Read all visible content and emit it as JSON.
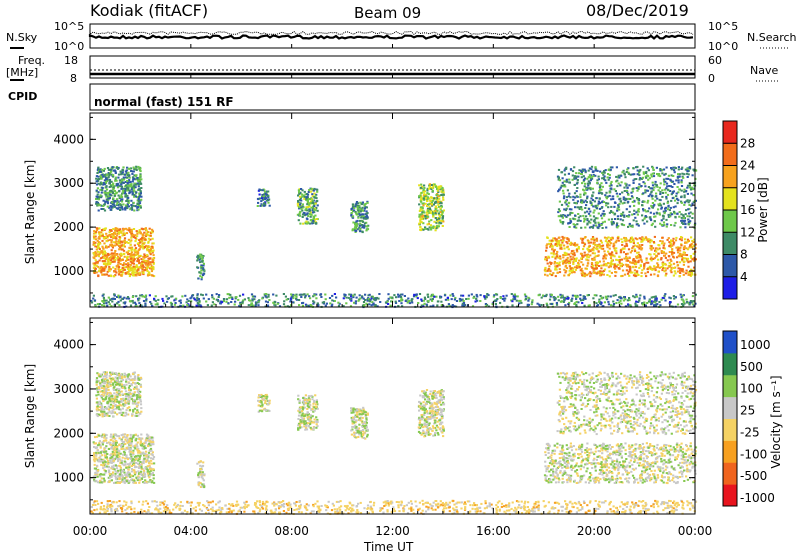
{
  "header": {
    "station": "Kodiak (fitACF)",
    "beam": "Beam 09",
    "date": "08/Dec/2019"
  },
  "noise_panel": {
    "left_label": "N.Sky",
    "right_label": "N.Search",
    "tick_top": "10^5",
    "tick_bottom": "10^0"
  },
  "freq_panel": {
    "left_label_1": "Freq.",
    "left_label_2": "[MHz]",
    "left_tick_top": "18",
    "left_tick_bottom": "8",
    "right_label": "Nave",
    "right_tick_top": "60",
    "right_tick_bottom": "0"
  },
  "cpid_panel": {
    "label": "CPID",
    "mode": "normal (fast) 151 RF"
  },
  "colors": {
    "power_scale": [
      "#1e1ee6",
      "#2d58a8",
      "#3e8a66",
      "#6ec84a",
      "#e4e21e",
      "#f7a21e",
      "#f26d1b",
      "#e8281e"
    ],
    "velocity_scale": [
      "#e8141e",
      "#f0641e",
      "#f7a020",
      "#f5d264",
      "#c8c8c8",
      "#86c850",
      "#2e8a50",
      "#2050c8"
    ]
  },
  "chart_data": [
    {
      "type": "heatmap",
      "title": "Power",
      "ylabel": "Slant Range [km]",
      "xlabel": "Time UT",
      "x_ticks": [
        "00:00",
        "04:00",
        "08:00",
        "12:00",
        "16:00",
        "20:00",
        "00:00"
      ],
      "y_ticks": [
        "1000",
        "2000",
        "3000",
        "4000"
      ],
      "ylim": [
        180,
        4600
      ],
      "xlim_hours": [
        0,
        24
      ],
      "colorbar": {
        "label": "Power [dB]",
        "ticks": [
          "4",
          "8",
          "12",
          "16",
          "20",
          "24",
          "28"
        ],
        "range": [
          0,
          32
        ]
      },
      "echo_regions": [
        {
          "t0": 0.1,
          "t1": 2.5,
          "r0": 900,
          "r1": 2000,
          "level": 22
        },
        {
          "t0": 0.2,
          "t1": 2.0,
          "r0": 2400,
          "r1": 3400,
          "level": 10
        },
        {
          "t0": 4.2,
          "t1": 4.5,
          "r0": 800,
          "r1": 1400,
          "level": 10
        },
        {
          "t0": 6.6,
          "t1": 7.1,
          "r0": 2500,
          "r1": 2900,
          "level": 8
        },
        {
          "t0": 8.2,
          "t1": 9.0,
          "r0": 2100,
          "r1": 2900,
          "level": 12
        },
        {
          "t0": 10.3,
          "t1": 11.0,
          "r0": 1900,
          "r1": 2600,
          "level": 10
        },
        {
          "t0": 13.0,
          "t1": 14.0,
          "r0": 1950,
          "r1": 3000,
          "level": 15
        },
        {
          "t0": 18.0,
          "t1": 24.0,
          "r0": 900,
          "r1": 1800,
          "level": 22
        },
        {
          "t0": 18.5,
          "t1": 24.0,
          "r0": 2000,
          "r1": 3400,
          "level": 10
        },
        {
          "t0": 0.0,
          "t1": 24.0,
          "r0": 200,
          "r1": 500,
          "level": 9
        }
      ]
    },
    {
      "type": "heatmap",
      "title": "Velocity",
      "ylabel": "Slant Range [km]",
      "xlabel": "Time UT",
      "x_ticks": [
        "00:00",
        "04:00",
        "08:00",
        "12:00",
        "16:00",
        "20:00",
        "00:00"
      ],
      "y_ticks": [
        "1000",
        "2000",
        "3000",
        "4000"
      ],
      "ylim": [
        180,
        4600
      ],
      "xlim_hours": [
        0,
        24
      ],
      "colorbar": {
        "label": "Velocity [m s⁻¹]",
        "ticks": [
          "1000",
          "500",
          "100",
          "25",
          "-25",
          "-100",
          "-500",
          "-1000"
        ]
      },
      "echo_regions": [
        {
          "t0": 0.1,
          "t1": 2.5,
          "r0": 900,
          "r1": 2000,
          "level": 0
        },
        {
          "t0": 0.2,
          "t1": 2.0,
          "r0": 2400,
          "r1": 3400,
          "level": 0
        },
        {
          "t0": 4.2,
          "t1": 4.5,
          "r0": 800,
          "r1": 1400,
          "level": 0
        },
        {
          "t0": 6.6,
          "t1": 7.1,
          "r0": 2500,
          "r1": 2900,
          "level": 0
        },
        {
          "t0": 8.2,
          "t1": 9.0,
          "r0": 2100,
          "r1": 2900,
          "level": 0
        },
        {
          "t0": 10.3,
          "t1": 11.0,
          "r0": 1900,
          "r1": 2600,
          "level": 0
        },
        {
          "t0": 13.0,
          "t1": 14.0,
          "r0": 1950,
          "r1": 3000,
          "level": 0
        },
        {
          "t0": 18.0,
          "t1": 24.0,
          "r0": 900,
          "r1": 1800,
          "level": 0
        },
        {
          "t0": 18.5,
          "t1": 24.0,
          "r0": 2000,
          "r1": 3400,
          "level": 0
        },
        {
          "t0": 0.0,
          "t1": 24.0,
          "r0": 200,
          "r1": 500,
          "level": -60
        }
      ]
    }
  ]
}
